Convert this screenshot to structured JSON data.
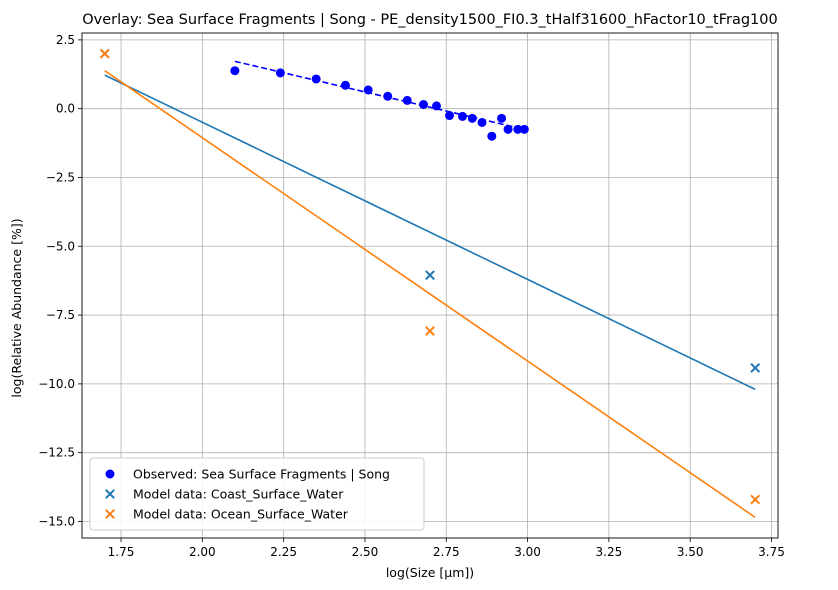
{
  "chart_data": {
    "type": "scatter",
    "title": "Overlay: Sea Surface Fragments | Song - PE_density1500_FI0.3_tHalf31600_hFactor10_tFrag100",
    "xlabel": "log(Size [µm])",
    "ylabel": "log(Relative Abundance [%])",
    "xlim": [
      1.63,
      3.77
    ],
    "ylim": [
      -15.6,
      2.75
    ],
    "xticks": [
      1.75,
      2.0,
      2.25,
      2.5,
      2.75,
      3.0,
      3.25,
      3.5,
      3.75
    ],
    "xtick_labels": [
      "1.75",
      "2.00",
      "2.25",
      "2.50",
      "2.75",
      "3.00",
      "3.25",
      "3.50",
      "3.75"
    ],
    "yticks": [
      2.5,
      0.0,
      -2.5,
      -5.0,
      -7.5,
      -10.0,
      -12.5,
      -15.0
    ],
    "ytick_labels": [
      "2.5",
      "0.0",
      "−2.5",
      "−5.0",
      "−7.5",
      "−10.0",
      "−12.5",
      "−15.0"
    ],
    "grid": true,
    "legend_position": "lower-left",
    "series": [
      {
        "name": "Observed: Sea Surface Fragments | Song",
        "kind": "scatter",
        "marker": "circle",
        "color": "#0000ff",
        "x": [
          2.1,
          2.24,
          2.35,
          2.44,
          2.51,
          2.57,
          2.63,
          2.68,
          2.72,
          2.76,
          2.8,
          2.83,
          2.86,
          2.89,
          2.92,
          2.94,
          2.97,
          2.99
        ],
        "y": [
          1.38,
          1.3,
          1.08,
          0.85,
          0.68,
          0.45,
          0.3,
          0.15,
          0.1,
          -0.25,
          -0.28,
          -0.35,
          -0.5,
          -1.0,
          -0.35,
          -0.75,
          -0.75,
          -0.75
        ]
      },
      {
        "name": "",
        "kind": "line",
        "dash": "dashed",
        "color": "#0000ff",
        "x": [
          2.1,
          3.0
        ],
        "y": [
          1.72,
          -0.78
        ]
      },
      {
        "name": "Model data: Coast_Surface_Water",
        "kind": "scatter",
        "marker": "x",
        "color": "#1f77b4",
        "x": [
          1.7,
          2.7,
          3.7
        ],
        "y": [
          2.0,
          -6.05,
          -9.42
        ]
      },
      {
        "name": "",
        "kind": "line",
        "color": "#1f77b4",
        "x": [
          1.7,
          3.7
        ],
        "y": [
          1.22,
          -10.2
        ]
      },
      {
        "name": "Model data: Ocean_Surface_Water",
        "kind": "scatter",
        "marker": "x",
        "color": "#ff7f0e",
        "x": [
          1.7,
          2.7,
          3.7
        ],
        "y": [
          2.0,
          -8.08,
          -14.2
        ]
      },
      {
        "name": "",
        "kind": "line",
        "color": "#ff7f0e",
        "x": [
          1.7,
          3.7
        ],
        "y": [
          1.38,
          -14.85
        ]
      }
    ],
    "legend": [
      {
        "label": "Observed: Sea Surface Fragments | Song",
        "marker": "circle",
        "color": "#0000ff"
      },
      {
        "label": "Model data: Coast_Surface_Water",
        "marker": "x",
        "color": "#1f77b4"
      },
      {
        "label": "Model data: Ocean_Surface_Water",
        "marker": "x",
        "color": "#ff7f0e"
      }
    ]
  }
}
